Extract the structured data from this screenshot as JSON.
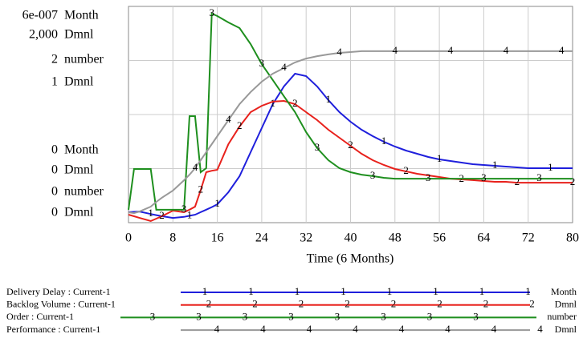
{
  "chart_data": {
    "type": "line",
    "x_label": "Time (6 Months)",
    "x": [
      0,
      1,
      2,
      4,
      5,
      6,
      8,
      10,
      11,
      12,
      13,
      14,
      15,
      16,
      18,
      20,
      22,
      24,
      26,
      28,
      30,
      32,
      34,
      36,
      38,
      40,
      42,
      44,
      46,
      48,
      50,
      52,
      54,
      56,
      58,
      60,
      62,
      64,
      66,
      68,
      70,
      72,
      74,
      76,
      78,
      80
    ],
    "xlim": [
      0,
      80
    ],
    "xticks": [
      0,
      8,
      16,
      24,
      32,
      40,
      48,
      56,
      64,
      72,
      80
    ],
    "grid": true,
    "series": [
      {
        "name": "Delivery Delay : Current-1",
        "unit": "Month",
        "marker": "1",
        "color": "#1f1fdc",
        "ylim": [
          0,
          6e-07
        ],
        "yticks": [
          0,
          {
            "value": 6e-07,
            "label": "6e-007"
          }
        ],
        "values": [
          2.9e-08,
          3e-08,
          3.1e-08,
          2.4e-08,
          2.1e-08,
          1.8e-08,
          1.3e-08,
          1.6e-08,
          1.9e-08,
          2.2e-08,
          2.9e-08,
          3.6e-08,
          4.3e-08,
          5.1e-08,
          8.44e-08,
          1.289e-07,
          1.956e-07,
          2.622e-07,
          3.289e-07,
          3.778e-07,
          4.133e-07,
          4.067e-07,
          3.778e-07,
          3.4e-07,
          3.067e-07,
          2.8e-07,
          2.578e-07,
          2.4e-07,
          2.244e-07,
          2.111e-07,
          2e-07,
          1.911e-07,
          1.822e-07,
          1.756e-07,
          1.711e-07,
          1.667e-07,
          1.622e-07,
          1.6e-07,
          1.578e-07,
          1.556e-07,
          1.533e-07,
          1.511e-07,
          1.511e-07,
          1.511e-07,
          1.511e-07,
          1.511e-07
        ]
      },
      {
        "name": "Backlog Volume : Current-1",
        "unit": "Dmnl",
        "marker": "2",
        "color": "#e8211c",
        "ylim": [
          0,
          2000
        ],
        "yticks": [
          0,
          {
            "value": 2000,
            "label": "2,000"
          }
        ],
        "values": [
          74,
          59,
          44,
          15,
          37,
          59,
          111,
          96,
          120,
          148,
          300,
          467,
          480,
          489,
          726,
          889,
          1022,
          1081,
          1119,
          1126,
          1096,
          1022,
          948,
          859,
          785,
          711,
          637,
          578,
          533,
          496,
          474,
          452,
          437,
          422,
          407,
          400,
          393,
          385,
          378,
          378,
          370,
          370,
          370,
          370,
          370,
          370
        ]
      },
      {
        "name": "Order : Current-1",
        "unit": "number",
        "marker": "3",
        "color": "#1e8f1e",
        "ylim": [
          0,
          2
        ],
        "yticks": [
          0,
          2
        ],
        "values": [
          0.119,
          0.496,
          0.496,
          0.496,
          0.119,
          0.119,
          0.119,
          0.119,
          0.985,
          0.985,
          0.467,
          0.504,
          1.933,
          1.911,
          1.852,
          1.8,
          1.652,
          1.467,
          1.319,
          1.17,
          1.022,
          0.837,
          0.689,
          0.578,
          0.504,
          0.467,
          0.444,
          0.43,
          0.415,
          0.407,
          0.407,
          0.407,
          0.407,
          0.407,
          0.407,
          0.407,
          0.407,
          0.407,
          0.407,
          0.407,
          0.407,
          0.407,
          0.407,
          0.407,
          0.407,
          0.407
        ]
      },
      {
        "name": "Performance : Current-1",
        "unit": "Dmnl",
        "marker": "4",
        "color": "#999999",
        "ylim": [
          0,
          1
        ],
        "yticks": [
          0,
          1
        ],
        "values": [
          0.048,
          0.044,
          0.052,
          0.074,
          0.096,
          0.115,
          0.148,
          0.196,
          0.222,
          0.252,
          0.289,
          0.326,
          0.363,
          0.4,
          0.474,
          0.548,
          0.604,
          0.652,
          0.689,
          0.715,
          0.741,
          0.759,
          0.77,
          0.778,
          0.785,
          0.789,
          0.793,
          0.793,
          0.793,
          0.793,
          0.793,
          0.793,
          0.793,
          0.793,
          0.793,
          0.793,
          0.793,
          0.793,
          0.793,
          0.793,
          0.793,
          0.793,
          0.793,
          0.793,
          0.793,
          0.793
        ]
      }
    ]
  }
}
